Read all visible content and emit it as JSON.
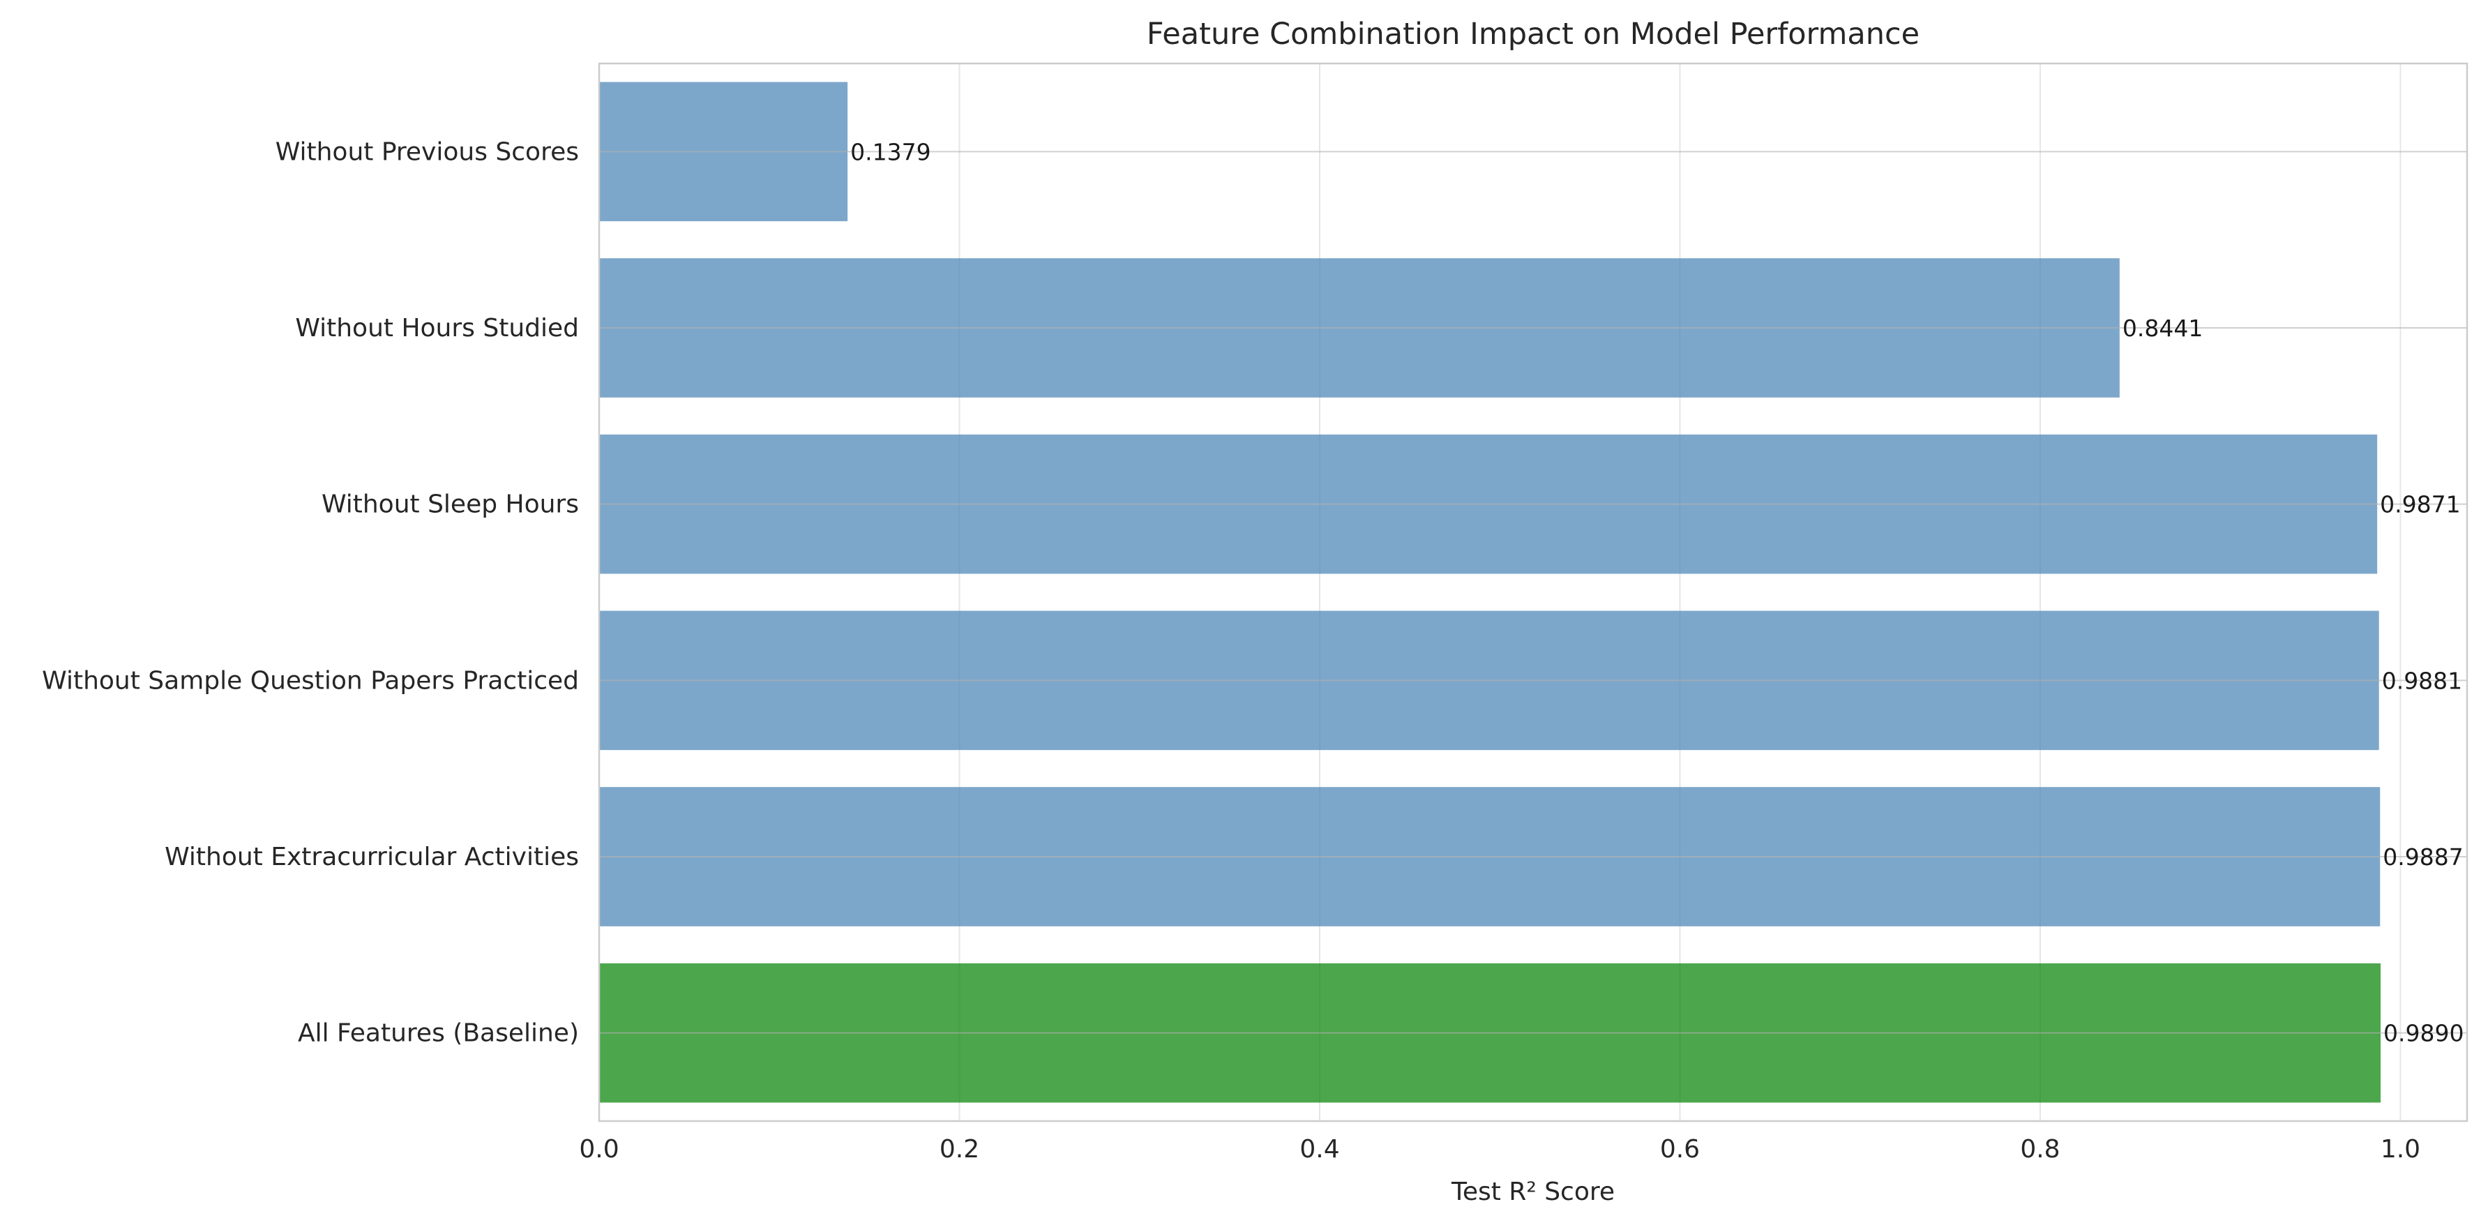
{
  "chart_data": {
    "type": "bar",
    "orientation": "horizontal",
    "title": "Feature Combination Impact on Model Performance",
    "xlabel": "Test R² Score",
    "ylabel": "",
    "xlim": [
      0,
      1.037
    ],
    "xticks": [
      0.0,
      0.2,
      0.4,
      0.6,
      0.8,
      1.0
    ],
    "xtick_labels": [
      "0.0",
      "0.2",
      "0.4",
      "0.6",
      "0.8",
      "1.0"
    ],
    "grid": true,
    "categories": [
      "Without Previous Scores",
      "Without Hours Studied",
      "Without Sleep Hours",
      "Without Sample Question Papers Practiced",
      "Without Extracurricular Activities",
      "All Features (Baseline)"
    ],
    "values": [
      0.1379,
      0.8441,
      0.9871,
      0.9881,
      0.9887,
      0.989
    ],
    "value_labels": [
      "0.1379",
      "0.8441",
      "0.9871",
      "0.9881",
      "0.9887",
      "0.9890"
    ],
    "colors": [
      "#4682b4",
      "#4682b4",
      "#4682b4",
      "#4682b4",
      "#4682b4",
      "#008000"
    ]
  }
}
